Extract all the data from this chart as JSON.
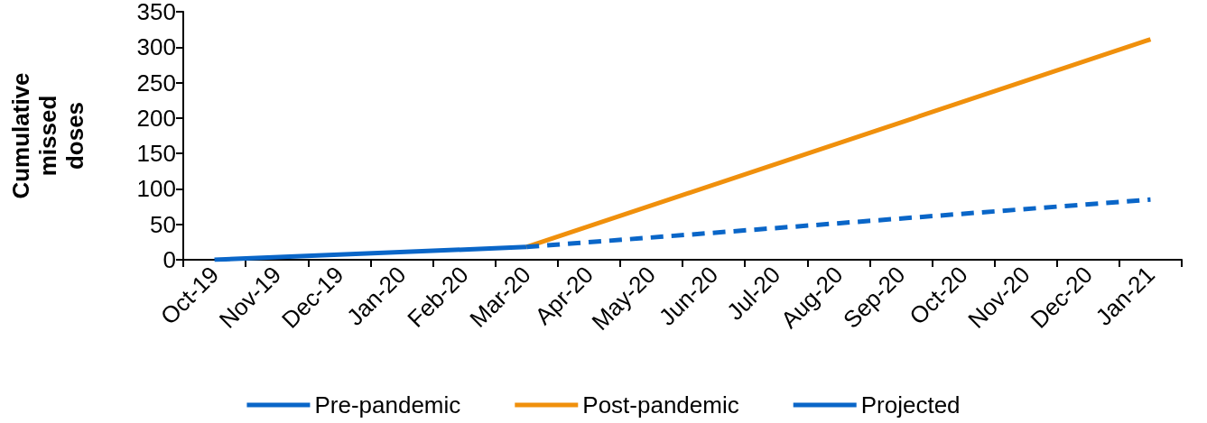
{
  "chart_data": {
    "type": "line",
    "ylabel": "Cumulative missed doses",
    "categories": [
      "Oct-19",
      "Nov-19",
      "Dec-19",
      "Jan-20",
      "Feb-20",
      "Mar-20",
      "Apr-20",
      "May-20",
      "Jun-20",
      "Jul-20",
      "Aug-20",
      "Sep-20",
      "Oct-20",
      "Nov-20",
      "Dec-20",
      "Jan-21"
    ],
    "series": [
      {
        "name": "Pre-pandemic",
        "color": "#0a66c8",
        "x": [
          "Oct-19",
          "Mar-20"
        ],
        "values": [
          0,
          18
        ],
        "line_style": "solid"
      },
      {
        "name": "Post-pandemic",
        "color": "#f0900c",
        "x": [
          "Mar-20",
          "Jan-21"
        ],
        "values": [
          18,
          311
        ],
        "line_style": "solid"
      },
      {
        "name": "Projected",
        "color": "#0a66c8",
        "x": [
          "Mar-20",
          "Jan-21"
        ],
        "values": [
          18,
          85
        ],
        "line_style": "dashed"
      }
    ],
    "ylim": [
      0,
      350
    ],
    "yticks": [
      0,
      50,
      100,
      150,
      200,
      250,
      300,
      350
    ],
    "grid": false,
    "legend": "bottom",
    "marker": "none"
  }
}
